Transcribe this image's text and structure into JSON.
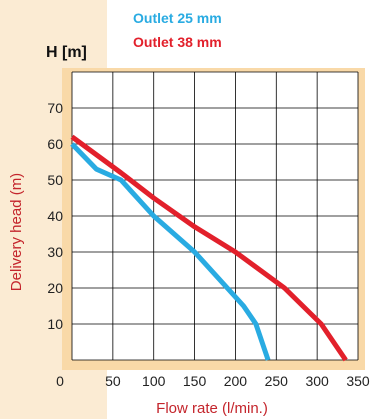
{
  "chart_data": {
    "type": "line",
    "y_unit_label": "H [m]",
    "xlabel": "Flow rate (l/min.)",
    "ylabel": "Delivery head (m)",
    "xlim": [
      0,
      350
    ],
    "ylim": [
      0,
      80
    ],
    "x_ticks": [
      0,
      50,
      100,
      150,
      200,
      250,
      300,
      350
    ],
    "x_tick_labels": [
      "0",
      "50",
      "100",
      "150",
      "200",
      "250",
      "300",
      "350"
    ],
    "y_ticks": [
      10,
      20,
      30,
      40,
      50,
      60,
      70
    ],
    "y_tick_labels": [
      "10",
      "20",
      "30",
      "40",
      "50",
      "60",
      "70"
    ],
    "grid": true,
    "legend_position": "top",
    "series": [
      {
        "name": "Outlet 25 mm",
        "color": "#29abe2",
        "points": [
          [
            0,
            60
          ],
          [
            30,
            53
          ],
          [
            60,
            50
          ],
          [
            100,
            40
          ],
          [
            150,
            30
          ],
          [
            210,
            15
          ],
          [
            225,
            10
          ],
          [
            240,
            0
          ]
        ]
      },
      {
        "name": "Outlet 38 mm",
        "color": "#e2202b",
        "points": [
          [
            0,
            62
          ],
          [
            60,
            52
          ],
          [
            100,
            45
          ],
          [
            150,
            37
          ],
          [
            200,
            30
          ],
          [
            260,
            20
          ],
          [
            305,
            10
          ],
          [
            335,
            0
          ]
        ]
      }
    ]
  },
  "colors": {
    "frame": "#f9d9a8",
    "left_band": "#fbebd3",
    "grid": "#000000",
    "axis_title": "#c4252c",
    "tick_text": "#222222"
  }
}
